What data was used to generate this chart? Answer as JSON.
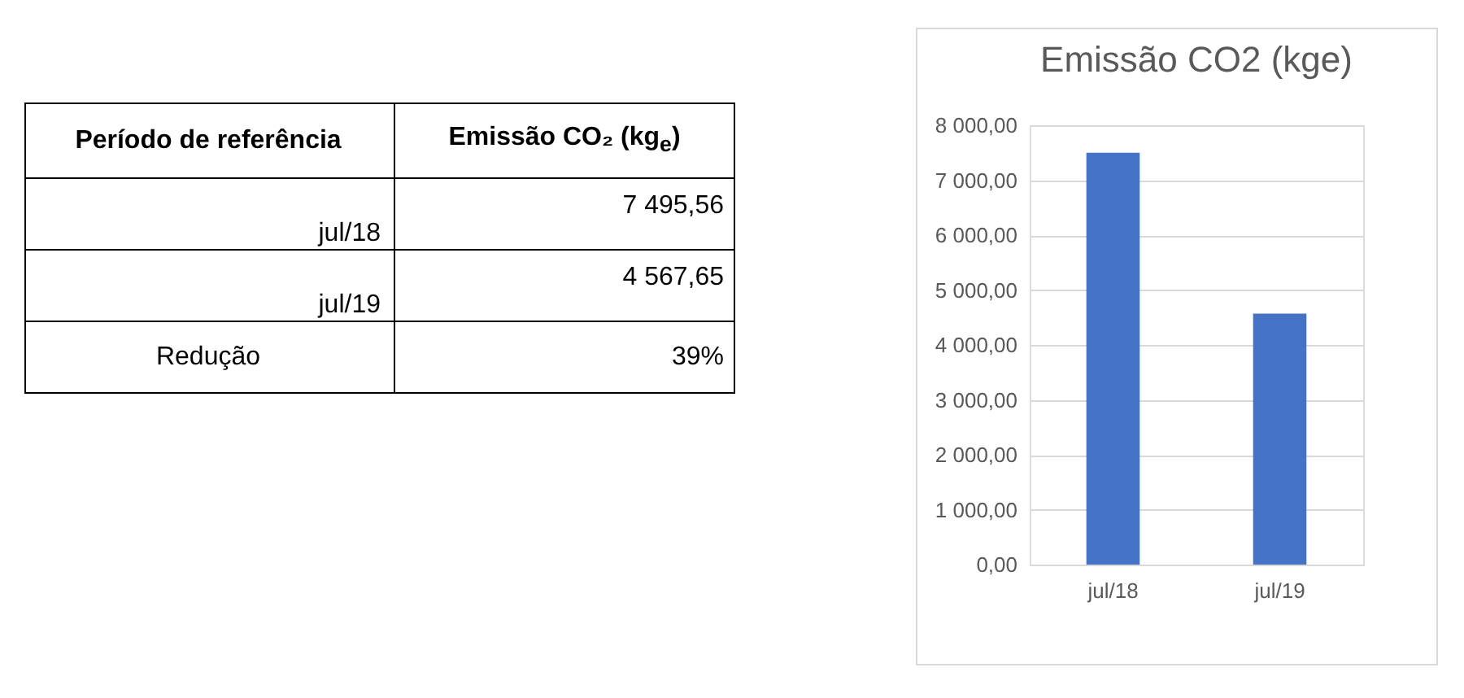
{
  "chart_data": [
    {
      "type": "other",
      "annotations": [
        "Período de referência",
        "Emissão CO₂ (kg$_{e}$)",
        "jul/18",
        "7 495,56",
        "jul/19",
        "4 567,65",
        "Redução",
        "39%"
      ]
    },
    {
      "type": "bar",
      "title": "Emissão CO2 (kge)",
      "categories": [
        "jul/18",
        "jul/19"
      ],
      "values": [
        7500,
        4570
      ],
      "color": "#4472c4",
      "ylim": [
        0,
        8000
      ],
      "yticks": [
        {
          "value": 0,
          "label": "0,00"
        },
        {
          "value": 1000,
          "label": "1 000,00"
        },
        {
          "value": 2000,
          "label": "2 000,00"
        },
        {
          "value": 3000,
          "label": "3 000,00"
        },
        {
          "value": 4000,
          "label": "4 000,00"
        },
        {
          "value": 5000,
          "label": "5 000,00"
        },
        {
          "value": 6000,
          "label": "6 000,00"
        },
        {
          "value": 7000,
          "label": "7 000,00"
        },
        {
          "value": 8000,
          "label": "8 000,00"
        }
      ],
      "grid": "y"
    }
  ]
}
